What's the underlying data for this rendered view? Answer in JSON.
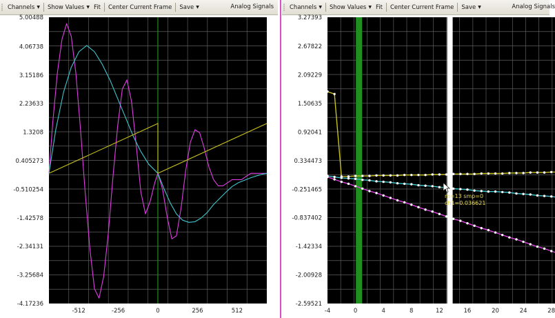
{
  "colors": {
    "plot_bg": "#000000",
    "grid": "#5f5f5f",
    "magenta": "#e23ee6",
    "cyan": "#3fc7cf",
    "yellow": "#c9c21b",
    "frame_marker": "#1f8f1f",
    "cursor": "#ffffff",
    "splitter": "#d84fc9"
  },
  "left_panel": {
    "toolbar": {
      "channels_label": "Channels",
      "show_values_label": "Show Values",
      "fit_label": "Fit",
      "center_frame_label": "Center Current Frame",
      "save_label": "Save",
      "title": "Analog Signals"
    }
  },
  "right_panel": {
    "toolbar": {
      "channels_label": "Channels",
      "show_values_label": "Show Values",
      "fit_label": "Fit",
      "center_frame_label": "Center Current Frame",
      "save_label": "Save",
      "title": "Analog Signals"
    },
    "tooltip": {
      "line1": "m=13 smp=0",
      "line2": "ch1=0.036621"
    }
  },
  "chart_data": [
    {
      "type": "line",
      "title": "",
      "xlim": [
        -704,
        704
      ],
      "ylim": [
        -4.17236,
        5.00488
      ],
      "x_ticks": [
        -512,
        -256,
        0,
        256,
        512
      ],
      "x_tick_labels": [
        "-512",
        "-256",
        "0",
        "256",
        "512"
      ],
      "y_ticks": [
        5.00488,
        4.06738,
        3.15186,
        2.23633,
        1.3208,
        0.405273,
        -0.510254,
        -1.42578,
        -2.34131,
        -3.25684,
        -4.17236
      ],
      "y_tick_labels": [
        "5.00488",
        "4.06738",
        "3.15186",
        "2.23633",
        "1.3208",
        "0.405273",
        "-0.510254",
        "-1.42578",
        "-2.34131",
        "-3.25684",
        "-4.17236"
      ],
      "grid": true,
      "current_frame_x": 0,
      "series": [
        {
          "color": "#e23ee6",
          "x": [
            -704,
            -680,
            -650,
            -620,
            -590,
            -560,
            -530,
            -500,
            -470,
            -440,
            -410,
            -380,
            -350,
            -320,
            -290,
            -260,
            -230,
            -200,
            -170,
            -140,
            -110,
            -80,
            -50,
            -20,
            0,
            30,
            60,
            90,
            120,
            150,
            180,
            210,
            240,
            270,
            300,
            330,
            360,
            390,
            420,
            450,
            480,
            510,
            540,
            570,
            600,
            630,
            660,
            704
          ],
          "y": [
            0.0,
            1.6,
            3.2,
            4.3,
            4.8,
            4.4,
            3.2,
            1.4,
            -0.6,
            -2.4,
            -3.7,
            -4.0,
            -3.3,
            -1.9,
            -0.1,
            1.5,
            2.7,
            3.0,
            2.3,
            0.9,
            -0.6,
            -1.3,
            -0.9,
            -0.3,
            0.0,
            -0.5,
            -1.4,
            -2.1,
            -2.0,
            -1.1,
            0.1,
            1.0,
            1.4,
            1.3,
            0.8,
            0.2,
            -0.2,
            -0.4,
            -0.4,
            -0.3,
            -0.2,
            -0.2,
            -0.2,
            -0.1,
            0.0,
            0.0,
            0.0,
            0.0
          ]
        },
        {
          "color": "#3fc7cf",
          "x": [
            -704,
            -660,
            -610,
            -560,
            -510,
            -460,
            -410,
            -360,
            -310,
            -260,
            -210,
            -160,
            -110,
            -60,
            -20,
            0,
            40,
            80,
            120,
            160,
            200,
            240,
            280,
            320,
            360,
            400,
            440,
            480,
            520,
            560,
            600,
            640,
            680,
            704
          ],
          "y": [
            0.0,
            1.4,
            2.6,
            3.4,
            3.9,
            4.1,
            3.9,
            3.5,
            3.0,
            2.4,
            1.8,
            1.2,
            0.7,
            0.3,
            0.1,
            0.0,
            -0.5,
            -0.95,
            -1.3,
            -1.5,
            -1.57,
            -1.55,
            -1.43,
            -1.25,
            -1.0,
            -0.8,
            -0.6,
            -0.42,
            -0.3,
            -0.22,
            -0.14,
            -0.08,
            -0.02,
            0.0
          ]
        },
        {
          "color": "#c9c21b",
          "x": [
            -704,
            0,
            0,
            704
          ],
          "y": [
            0.0,
            1.6,
            0.0,
            1.6
          ]
        }
      ]
    },
    {
      "type": "line",
      "title": "",
      "xlim": [
        -4,
        30
      ],
      "ylim": [
        -2.59521,
        3.27393
      ],
      "x_ticks": [
        -4,
        0,
        4,
        8,
        12,
        16,
        20,
        24,
        28
      ],
      "x_tick_labels": [
        "-4",
        "0",
        "4",
        "8",
        "12",
        "16",
        "20",
        "24",
        "28"
      ],
      "y_ticks": [
        3.27393,
        2.67822,
        2.09229,
        1.50635,
        0.92041,
        0.334473,
        -0.251465,
        -0.837402,
        -1.42334,
        -2.00928,
        -2.59521
      ],
      "y_tick_labels": [
        "3.27393",
        "2.67822",
        "2.09229",
        "1.50635",
        "0.92041",
        "0.334473",
        "-0.251465",
        "-0.837402",
        "-1.42334",
        "-2.00928",
        "-2.59521"
      ],
      "grid": true,
      "current_frame_x": 0.5,
      "cursor_x": 13.5,
      "series": [
        {
          "color": "#c9c21b",
          "x": [
            -4,
            -3,
            -2,
            -1,
            0,
            1,
            2,
            3,
            4,
            5,
            6,
            7,
            8,
            9,
            10,
            11,
            12,
            13,
            14,
            15,
            16,
            17,
            18,
            19,
            20,
            21,
            22,
            23,
            24,
            25,
            26,
            27,
            28,
            29,
            30
          ],
          "y": [
            1.75,
            1.7,
            0.01,
            0.01,
            0.02,
            0.02,
            0.02,
            0.03,
            0.03,
            0.03,
            0.03,
            0.04,
            0.04,
            0.04,
            0.04,
            0.05,
            0.05,
            0.05,
            0.06,
            0.06,
            0.06,
            0.06,
            0.07,
            0.07,
            0.07,
            0.07,
            0.08,
            0.08,
            0.08,
            0.09,
            0.09,
            0.09,
            0.1,
            0.1,
            0.1
          ]
        },
        {
          "color": "#3fc7cf",
          "x": [
            -4,
            -3,
            -2,
            -1,
            0,
            1,
            2,
            3,
            4,
            5,
            6,
            7,
            8,
            9,
            10,
            11,
            12,
            13,
            14,
            15,
            16,
            17,
            18,
            19,
            20,
            21,
            22,
            23,
            24,
            25,
            26,
            27,
            28,
            29,
            30
          ],
          "y": [
            0.02,
            0.0,
            -0.02,
            -0.03,
            -0.04,
            -0.06,
            -0.07,
            -0.09,
            -0.1,
            -0.11,
            -0.13,
            -0.14,
            -0.15,
            -0.17,
            -0.18,
            -0.19,
            -0.21,
            -0.22,
            -0.24,
            -0.25,
            -0.26,
            -0.28,
            -0.29,
            -0.3,
            -0.3,
            -0.31,
            -0.32,
            -0.34,
            -0.35,
            -0.36,
            -0.38,
            -0.39,
            -0.4,
            -0.42,
            -0.43
          ]
        },
        {
          "color": "#e23ee6",
          "x": [
            -4,
            -3,
            -2,
            -1,
            0,
            1,
            2,
            3,
            4,
            5,
            6,
            7,
            8,
            9,
            10,
            11,
            12,
            13,
            14,
            15,
            16,
            17,
            18,
            19,
            20,
            21,
            22,
            23,
            24,
            25,
            26,
            27,
            28,
            29,
            30
          ],
          "y": [
            0.0,
            -0.05,
            -0.1,
            -0.14,
            -0.19,
            -0.24,
            -0.29,
            -0.33,
            -0.38,
            -0.43,
            -0.48,
            -0.52,
            -0.57,
            -0.62,
            -0.67,
            -0.71,
            -0.76,
            -0.81,
            -0.86,
            -0.9,
            -0.95,
            -1.0,
            -1.05,
            -1.09,
            -1.14,
            -1.19,
            -1.24,
            -1.28,
            -1.33,
            -1.38,
            -1.43,
            -1.47,
            -1.52,
            -1.57,
            -1.62
          ]
        }
      ]
    }
  ]
}
